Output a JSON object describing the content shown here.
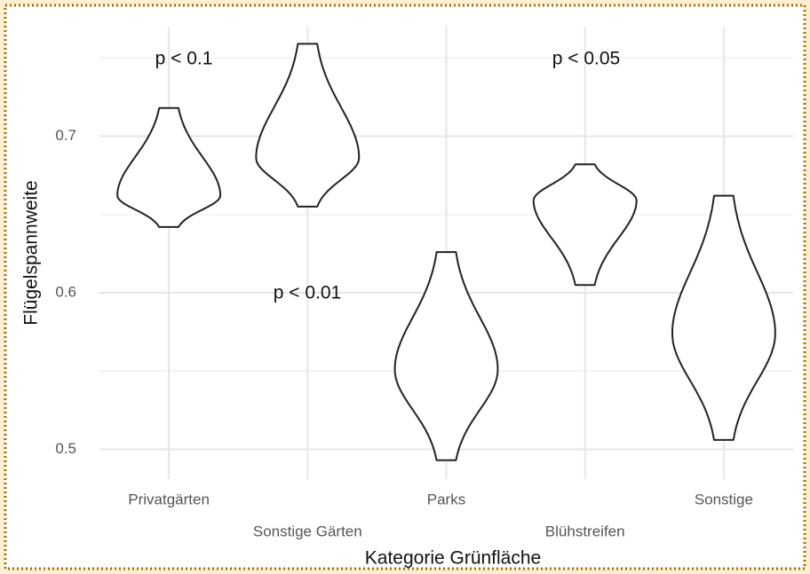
{
  "chart_data": {
    "type": "violin",
    "x_label": "Kategorie Grünfläche",
    "y_label": "Flügelspannweite",
    "categories": [
      "Privatgärten",
      "Sonstige Gärten",
      "Parks",
      "Blühstreifen",
      "Sonstige"
    ],
    "min": [
      0.642,
      0.655,
      0.493,
      0.605,
      0.506
    ],
    "max": [
      0.718,
      0.759,
      0.626,
      0.682,
      0.662
    ],
    "mode": [
      0.662,
      0.686,
      0.551,
      0.659,
      0.574
    ],
    "color": "#222222",
    "ylim": [
      0.481,
      0.77
    ],
    "yticks": [
      0.5,
      0.6,
      0.7
    ],
    "minor_yticks": [
      0.55,
      0.65,
      0.75
    ],
    "grid": true,
    "annotations": [
      "p < 0.1",
      "p < 0.05",
      "p < 0.01"
    ]
  }
}
